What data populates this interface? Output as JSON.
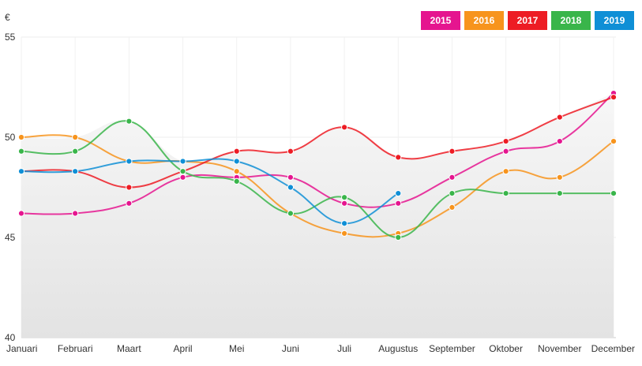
{
  "currency_label": "€",
  "chart_data": {
    "type": "line",
    "categories": [
      "Januari",
      "Februari",
      "Maart",
      "April",
      "Mei",
      "Juni",
      "Juli",
      "Augustus",
      "September",
      "Oktober",
      "November",
      "December"
    ],
    "yticks": [
      "55",
      "50",
      "45",
      "40"
    ],
    "ylim": [
      40,
      55
    ],
    "grid": true,
    "legend_position": "top-right",
    "series": [
      {
        "name": "2015",
        "color": "#e5158f",
        "values": [
          46.2,
          46.2,
          46.7,
          48.0,
          48.0,
          48.0,
          46.7,
          46.7,
          48.0,
          49.3,
          49.8,
          52.2
        ]
      },
      {
        "name": "2016",
        "color": "#f7941d",
        "values": [
          50.0,
          50.0,
          48.8,
          48.8,
          48.3,
          46.2,
          45.2,
          45.2,
          46.5,
          48.3,
          48.0,
          49.8
        ]
      },
      {
        "name": "2017",
        "color": "#ed1c24",
        "values": [
          48.3,
          48.3,
          47.5,
          48.3,
          49.3,
          49.3,
          50.5,
          49.0,
          49.3,
          49.8,
          51.0,
          52.0
        ]
      },
      {
        "name": "2018",
        "color": "#39b54a",
        "values": [
          49.3,
          49.3,
          50.8,
          48.3,
          47.8,
          46.2,
          47.0,
          45.0,
          47.2,
          47.2,
          47.2,
          47.2
        ]
      },
      {
        "name": "2019",
        "color": "#0f8fd6",
        "values": [
          48.3,
          48.3,
          48.8,
          48.8,
          48.8,
          47.5,
          45.7,
          47.2,
          null,
          null,
          null,
          null
        ]
      }
    ]
  }
}
